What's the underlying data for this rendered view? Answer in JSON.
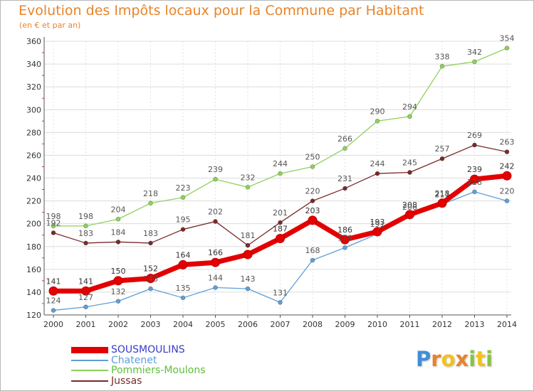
{
  "header": {
    "title": "Evolution des Impôts locaux pour la Commune par Habitant",
    "subtitle": "(en € et par an)"
  },
  "logo": {
    "text": "Proxiti",
    "letters": [
      {
        "char": "P",
        "color": "#3f8fd8"
      },
      {
        "char": "r",
        "color": "#e8842a"
      },
      {
        "char": "o",
        "color": "#f2c21b"
      },
      {
        "char": "x",
        "color": "#e8842a"
      },
      {
        "char": "i",
        "color": "#86c540"
      },
      {
        "char": "t",
        "color": "#f2c21b"
      },
      {
        "char": "i",
        "color": "#86c540"
      }
    ]
  },
  "chart_data": {
    "type": "line",
    "title": "Evolution des Impôts locaux pour la Commune par Habitant",
    "subtitle": "(en € et par an)",
    "x": [
      "2000",
      "2001",
      "2002",
      "2003",
      "2004",
      "2005",
      "2006",
      "2007",
      "2008",
      "2009",
      "2010",
      "2011",
      "2012",
      "2013",
      "2014"
    ],
    "ylim": [
      120,
      360
    ],
    "yticks": [
      120,
      140,
      160,
      180,
      200,
      220,
      240,
      260,
      280,
      300,
      320,
      340,
      360
    ],
    "grid": true,
    "legend_position": "bottom-left",
    "series": [
      {
        "name": "SOUSMOULINS",
        "color": "#e30000",
        "labelColor": "#3a3acf",
        "emphasis": true,
        "values": [
          141,
          141,
          150,
          152,
          164,
          166,
          173,
          187,
          203,
          186,
          193,
          208,
          218,
          239,
          242
        ],
        "labels": [
          "141",
          "141",
          "150",
          "152",
          "164",
          "166",
          "",
          "187",
          "203",
          "186",
          "193",
          "208",
          "218",
          "239",
          "242"
        ]
      },
      {
        "name": "Chatenet",
        "color": "#5f9fd6",
        "labelColor": "#5f9fd6",
        "emphasis": false,
        "values": [
          124,
          127,
          132,
          143,
          135,
          144,
          143,
          131,
          168,
          179,
          191,
          206,
          217,
          228,
          220
        ],
        "labels": [
          "124",
          "127",
          "132",
          "143",
          "135",
          "144",
          "143",
          "131",
          "168",
          "179",
          "191",
          "206",
          "217",
          "228",
          "220"
        ]
      },
      {
        "name": "Pommiers-Moulons",
        "color": "#8fd05a",
        "labelColor": "#5ebf3a",
        "emphasis": false,
        "values": [
          198,
          198,
          204,
          218,
          223,
          239,
          232,
          244,
          250,
          266,
          290,
          294,
          338,
          342,
          354
        ],
        "labels": [
          "198",
          "198",
          "204",
          "218",
          "223",
          "239",
          "232",
          "244",
          "250",
          "266",
          "290",
          "294",
          "338",
          "342",
          "354"
        ]
      },
      {
        "name": "Jussas",
        "color": "#7a2a2a",
        "labelColor": "#7a2a2a",
        "emphasis": false,
        "values": [
          192,
          183,
          184,
          183,
          195,
          202,
          181,
          201,
          220,
          231,
          244,
          245,
          257,
          269,
          263
        ],
        "labels": [
          "192",
          "183",
          "184",
          "183",
          "195",
          "202",
          "181",
          "201",
          "220",
          "231",
          "244",
          "245",
          "257",
          "269",
          "263"
        ]
      }
    ]
  }
}
